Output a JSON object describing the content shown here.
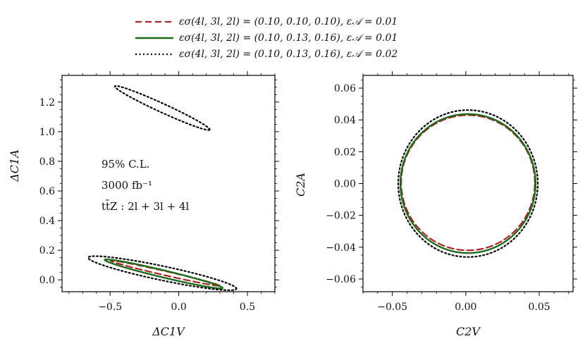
{
  "legend": {
    "entries": [
      {
        "text": "εσ(4l, 3l, 2l) = (0.10, 0.10, 0.10), ε𝒜 = 0.01",
        "color": "#b22222",
        "style": "dashed"
      },
      {
        "text": "εσ(4l, 3l, 2l) = (0.10, 0.13, 0.16), ε𝒜 = 0.01",
        "color": "#1a6b1a",
        "style": "solid"
      },
      {
        "text": "εσ(4l, 3l, 2l) = (0.10, 0.13, 0.16), ε𝒜 = 0.02",
        "color": "#000000",
        "style": "dotted"
      }
    ]
  },
  "chart_data": [
    {
      "type": "contour",
      "title": "",
      "xlabel": "ΔC1V",
      "ylabel": "ΔC1A",
      "xlim": [
        -0.85,
        0.7
      ],
      "ylim": [
        -0.08,
        1.38
      ],
      "xticks": [
        -0.5,
        0.0,
        0.5
      ],
      "xtick_labels": [
        "−0.5",
        "0.0",
        "0.5"
      ],
      "yticks": [
        0.0,
        0.2,
        0.4,
        0.6,
        0.8,
        1.0,
        1.2
      ],
      "ytick_labels": [
        "0.0",
        "0.2",
        "0.4",
        "0.6",
        "0.8",
        "1.0",
        "1.2"
      ],
      "annotations": [
        "95% C.L.",
        "3000 fb⁻¹",
        "tt̄Z : 2l + 3l + 4l"
      ],
      "series": [
        {
          "name": "dashed",
          "color": "#b22222",
          "style": "dashed",
          "ellipses": [
            {
              "cx": -0.1,
              "cy": 0.045,
              "a": 0.405,
              "b": 0.014,
              "angle_deg": -12
            }
          ]
        },
        {
          "name": "solid",
          "color": "#1a6b1a",
          "style": "solid",
          "ellipses": [
            {
              "cx": -0.11,
              "cy": 0.04,
              "a": 0.44,
              "b": 0.024,
              "angle_deg": -12.5
            }
          ]
        },
        {
          "name": "dotted",
          "color": "#000000",
          "style": "dotted",
          "ellipses": [
            {
              "cx": -0.12,
              "cy": 0.045,
              "a": 0.55,
              "b": 0.048,
              "angle_deg": -11
            },
            {
              "cx": -0.12,
              "cy": 1.16,
              "a": 0.375,
              "b": 0.03,
              "angle_deg": -23
            }
          ]
        }
      ]
    },
    {
      "type": "contour",
      "title": "",
      "xlabel": "C2V",
      "ylabel": "C2A",
      "xlim": [
        -0.07,
        0.073
      ],
      "ylim": [
        -0.068,
        0.068
      ],
      "xticks": [
        -0.05,
        0.0,
        0.05
      ],
      "xtick_labels": [
        "−0.05",
        "0.00",
        "0.05"
      ],
      "yticks": [
        -0.06,
        -0.04,
        -0.02,
        0.0,
        0.02,
        0.04,
        0.06
      ],
      "ytick_labels": [
        "−0.06",
        "−0.04",
        "−0.02",
        "0.00",
        "0.02",
        "0.04",
        "0.06"
      ],
      "series": [
        {
          "name": "dashed",
          "color": "#b22222",
          "style": "dashed",
          "ellipses": [
            {
              "cx": 0.0015,
              "cy": 0.0005,
              "a": 0.0455,
              "b": 0.0425,
              "angle_deg": 0
            }
          ]
        },
        {
          "name": "solid",
          "color": "#1a6b1a",
          "style": "solid",
          "ellipses": [
            {
              "cx": 0.0015,
              "cy": 0.0,
              "a": 0.046,
              "b": 0.0437,
              "angle_deg": 0
            }
          ]
        },
        {
          "name": "dotted",
          "color": "#000000",
          "style": "dotted",
          "ellipses": [
            {
              "cx": 0.0015,
              "cy": 0.0,
              "a": 0.0475,
              "b": 0.0462,
              "angle_deg": 0
            }
          ]
        }
      ]
    }
  ]
}
